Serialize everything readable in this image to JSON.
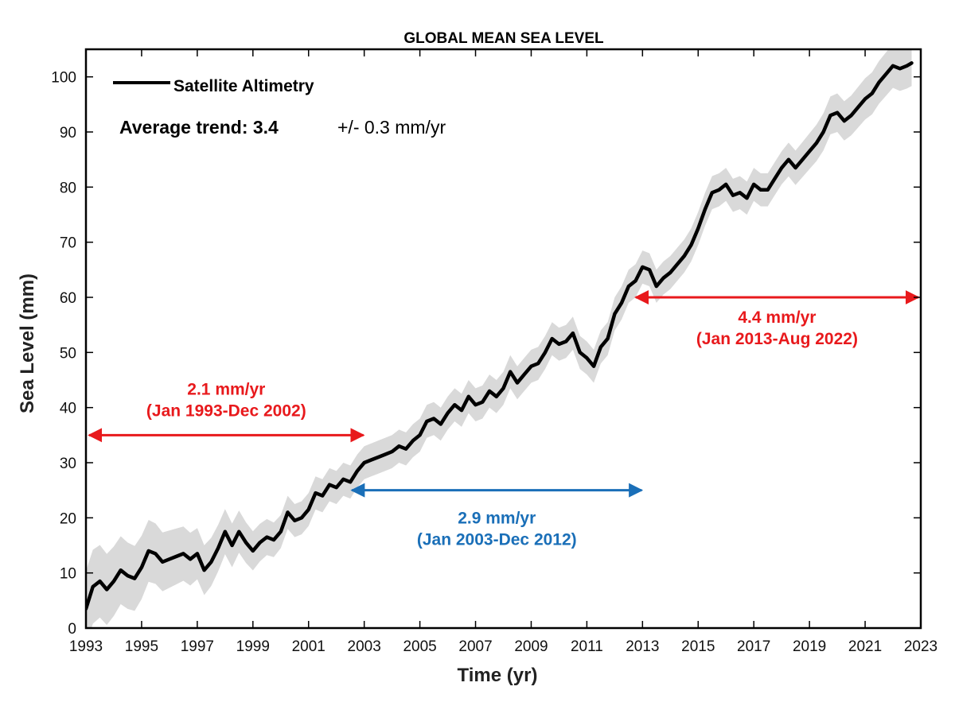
{
  "chart_data": {
    "type": "line",
    "title": "GLOBAL MEAN SEA LEVEL",
    "xlabel": "Time (yr)",
    "ylabel": "Sea Level (mm)",
    "xlim": [
      1993,
      2023
    ],
    "ylim": [
      0,
      105
    ],
    "x_ticks": [
      "1993",
      "1995",
      "1997",
      "1999",
      "2001",
      "2003",
      "2005",
      "2007",
      "2009",
      "2011",
      "2013",
      "2015",
      "2017",
      "2019",
      "2021",
      "2023"
    ],
    "y_ticks": [
      "0",
      "10",
      "20",
      "30",
      "40",
      "50",
      "60",
      "70",
      "80",
      "90",
      "100"
    ],
    "legend": {
      "position": "top-left",
      "label": "Satellite Altimetry"
    },
    "trend": {
      "bold": "Average trend: 3.4",
      "rest": "+/- 0.3 mm/yr"
    },
    "series": [
      {
        "name": "Satellite Altimetry",
        "color": "#000000",
        "uncertainty_band_color": "#d9d9d9",
        "points": [
          [
            1993.0,
            3.5
          ],
          [
            1993.25,
            7.5
          ],
          [
            1993.5,
            8.5
          ],
          [
            1993.75,
            7.0
          ],
          [
            1994.0,
            8.5
          ],
          [
            1994.25,
            10.5
          ],
          [
            1994.5,
            9.5
          ],
          [
            1994.75,
            9.0
          ],
          [
            1995.0,
            11.0
          ],
          [
            1995.25,
            14.0
          ],
          [
            1995.5,
            13.5
          ],
          [
            1995.75,
            12.0
          ],
          [
            1996.0,
            12.5
          ],
          [
            1996.25,
            13.0
          ],
          [
            1996.5,
            13.5
          ],
          [
            1996.75,
            12.5
          ],
          [
            1997.0,
            13.5
          ],
          [
            1997.25,
            10.5
          ],
          [
            1997.5,
            12.0
          ],
          [
            1997.75,
            14.5
          ],
          [
            1998.0,
            17.5
          ],
          [
            1998.25,
            15.0
          ],
          [
            1998.5,
            17.5
          ],
          [
            1998.75,
            15.5
          ],
          [
            1999.0,
            14.0
          ],
          [
            1999.25,
            15.5
          ],
          [
            1999.5,
            16.5
          ],
          [
            1999.75,
            16.0
          ],
          [
            2000.0,
            17.5
          ],
          [
            2000.25,
            21.0
          ],
          [
            2000.5,
            19.5
          ],
          [
            2000.75,
            20.0
          ],
          [
            2001.0,
            21.5
          ],
          [
            2001.25,
            24.5
          ],
          [
            2001.5,
            24.0
          ],
          [
            2001.75,
            26.0
          ],
          [
            2002.0,
            25.5
          ],
          [
            2002.25,
            27.0
          ],
          [
            2002.5,
            26.5
          ],
          [
            2002.75,
            28.5
          ],
          [
            2003.0,
            30.0
          ],
          [
            2003.25,
            30.5
          ],
          [
            2003.5,
            31.0
          ],
          [
            2003.75,
            31.5
          ],
          [
            2004.0,
            32.0
          ],
          [
            2004.25,
            33.0
          ],
          [
            2004.5,
            32.5
          ],
          [
            2004.75,
            34.0
          ],
          [
            2005.0,
            35.0
          ],
          [
            2005.25,
            37.5
          ],
          [
            2005.5,
            38.0
          ],
          [
            2005.75,
            37.0
          ],
          [
            2006.0,
            39.0
          ],
          [
            2006.25,
            40.5
          ],
          [
            2006.5,
            39.5
          ],
          [
            2006.75,
            42.0
          ],
          [
            2007.0,
            40.5
          ],
          [
            2007.25,
            41.0
          ],
          [
            2007.5,
            43.0
          ],
          [
            2007.75,
            42.0
          ],
          [
            2008.0,
            43.5
          ],
          [
            2008.25,
            46.5
          ],
          [
            2008.5,
            44.5
          ],
          [
            2008.75,
            46.0
          ],
          [
            2009.0,
            47.5
          ],
          [
            2009.25,
            48.0
          ],
          [
            2009.5,
            50.0
          ],
          [
            2009.75,
            52.5
          ],
          [
            2010.0,
            51.5
          ],
          [
            2010.25,
            52.0
          ],
          [
            2010.5,
            53.5
          ],
          [
            2010.75,
            50.0
          ],
          [
            2011.0,
            49.0
          ],
          [
            2011.25,
            47.5
          ],
          [
            2011.5,
            51.0
          ],
          [
            2011.75,
            52.5
          ],
          [
            2012.0,
            57.0
          ],
          [
            2012.25,
            59.0
          ],
          [
            2012.5,
            62.0
          ],
          [
            2012.75,
            63.0
          ],
          [
            2013.0,
            65.5
          ],
          [
            2013.25,
            65.0
          ],
          [
            2013.5,
            62.0
          ],
          [
            2013.75,
            63.5
          ],
          [
            2014.0,
            64.5
          ],
          [
            2014.25,
            66.0
          ],
          [
            2014.5,
            67.5
          ],
          [
            2014.75,
            69.5
          ],
          [
            2015.0,
            72.5
          ],
          [
            2015.25,
            76.0
          ],
          [
            2015.5,
            79.0
          ],
          [
            2015.75,
            79.5
          ],
          [
            2016.0,
            80.5
          ],
          [
            2016.25,
            78.5
          ],
          [
            2016.5,
            79.0
          ],
          [
            2016.75,
            78.0
          ],
          [
            2017.0,
            80.5
          ],
          [
            2017.25,
            79.5
          ],
          [
            2017.5,
            79.5
          ],
          [
            2017.75,
            81.5
          ],
          [
            2018.0,
            83.5
          ],
          [
            2018.25,
            85.0
          ],
          [
            2018.5,
            83.5
          ],
          [
            2018.75,
            85.0
          ],
          [
            2019.0,
            86.5
          ],
          [
            2019.25,
            88.0
          ],
          [
            2019.5,
            90.0
          ],
          [
            2019.75,
            93.0
          ],
          [
            2020.0,
            93.5
          ],
          [
            2020.25,
            92.0
          ],
          [
            2020.5,
            93.0
          ],
          [
            2020.75,
            94.5
          ],
          [
            2021.0,
            96.0
          ],
          [
            2021.25,
            97.0
          ],
          [
            2021.5,
            99.0
          ],
          [
            2021.75,
            100.5
          ],
          [
            2022.0,
            102.0
          ],
          [
            2022.25,
            101.5
          ],
          [
            2022.5,
            102.0
          ],
          [
            2022.67,
            102.5
          ]
        ]
      }
    ],
    "annotations": [
      {
        "line1": "2.1 mm/yr",
        "line2": "(Jan 1993-Dec 2002)",
        "color": "#e8191c",
        "x_start": 1993.0,
        "x_end": 2003.0,
        "y": 35
      },
      {
        "line1": "2.9 mm/yr",
        "line2": "(Jan 2003-Dec 2012)",
        "color": "#1a6fb8",
        "x_start": 2002.5,
        "x_end": 2013.0,
        "y": 25
      },
      {
        "line1": "4.4 mm/yr",
        "line2": "(Jan 2013-Aug 2022)",
        "color": "#e8191c",
        "x_start": 2012.7,
        "x_end": 2023.0,
        "y": 60
      }
    ]
  }
}
